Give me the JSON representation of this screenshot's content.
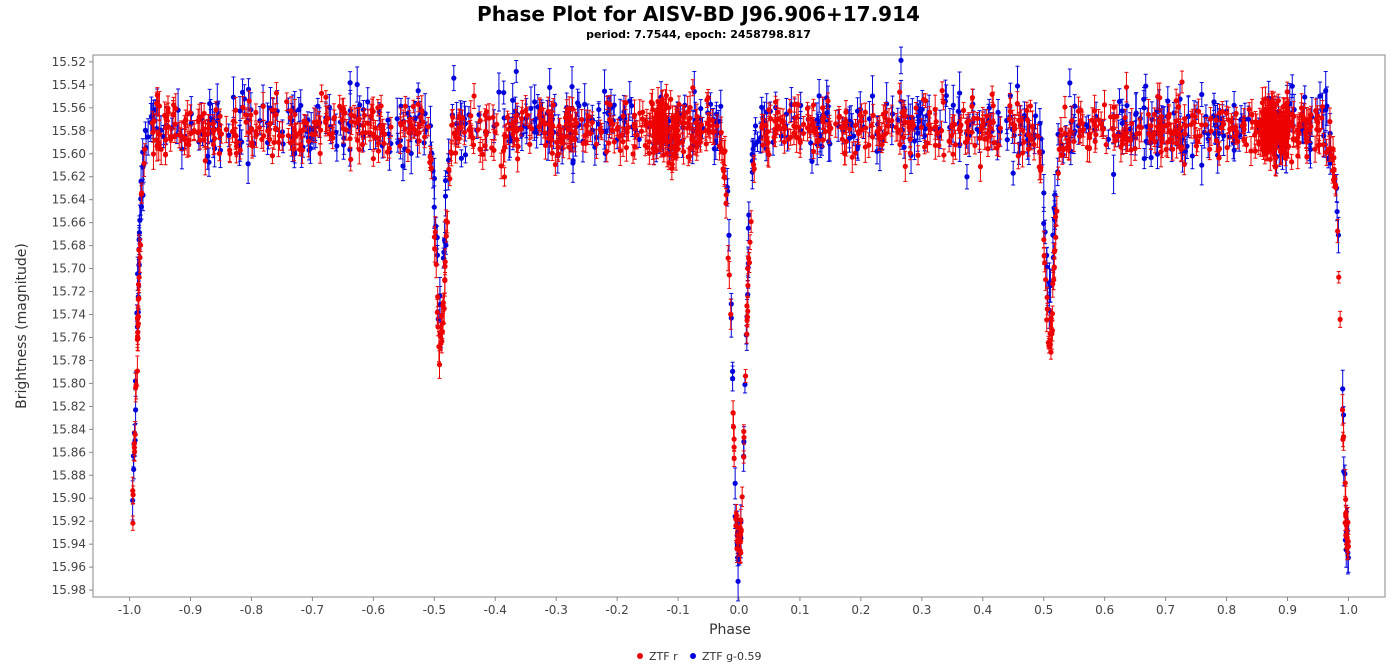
{
  "chart_data": {
    "type": "scatter",
    "title": "Phase Plot for AISV-BD J96.906+17.914",
    "subtitle": "period: 7.7544, epoch: 2458798.817",
    "xlabel": "Phase",
    "ylabel": "Brightness (magnitude)",
    "xlim": [
      -1.06,
      1.06
    ],
    "ylim": [
      15.986,
      15.514
    ],
    "y_inverted": true,
    "x_ticks": [
      "-1.0",
      "-0.9",
      "-0.8",
      "-0.7",
      "-0.6",
      "-0.5",
      "-0.4",
      "-0.3",
      "-0.2",
      "-0.1",
      "0.0",
      "0.1",
      "0.2",
      "0.3",
      "0.4",
      "0.5",
      "0.6",
      "0.7",
      "0.8",
      "0.9",
      "1.0"
    ],
    "y_ticks": [
      "15.52",
      "15.54",
      "15.56",
      "15.58",
      "15.60",
      "15.62",
      "15.64",
      "15.66",
      "15.68",
      "15.70",
      "15.72",
      "15.74",
      "15.76",
      "15.78",
      "15.80",
      "15.82",
      "15.84",
      "15.86",
      "15.88",
      "15.90",
      "15.92",
      "15.94",
      "15.96",
      "15.98"
    ],
    "grid": false,
    "legend_position": "bottom-center",
    "series": [
      {
        "name": "ZTF r",
        "color": "#ee0000",
        "model": {
          "baseline": 15.578,
          "primary_eclipse": {
            "phase": 0.0,
            "depth": 0.365,
            "width": 0.011
          },
          "secondary_eclipse": {
            "phase": 0.51,
            "depth": 0.19,
            "width": 0.008
          },
          "dense_clusters": [
            -0.12,
            0.88
          ],
          "scatter": 0.012,
          "error": 0.008
        }
      },
      {
        "name": "ZTF g-0.59",
        "color": "#0000dd",
        "model": {
          "baseline": 15.575,
          "primary_eclipse": {
            "phase": 0.0,
            "depth": 0.37,
            "width": 0.01
          },
          "secondary_eclipse": {
            "phase": 0.51,
            "depth": 0.16,
            "width": 0.007
          },
          "dense_clusters": [],
          "scatter": 0.014,
          "error": 0.011
        }
      }
    ]
  }
}
